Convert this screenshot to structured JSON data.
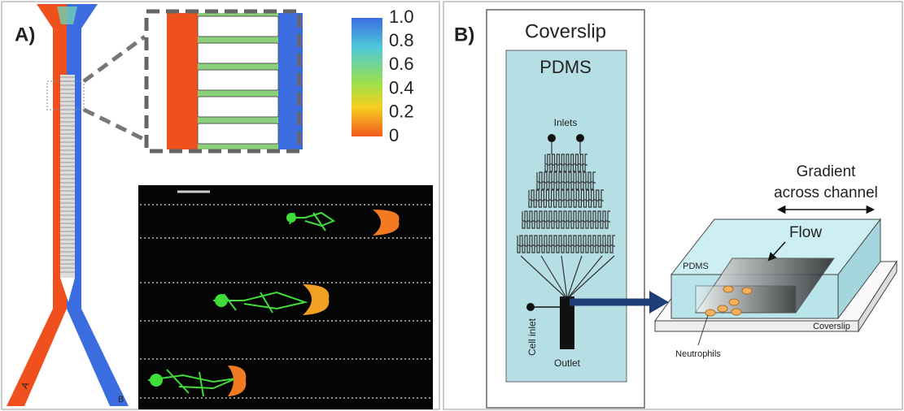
{
  "panel_a": {
    "label": "A)",
    "colorbar_ticks": [
      "1.0",
      "0.8",
      "0.6",
      "0.4",
      "0.2",
      "0"
    ],
    "channel_labels": [
      "A",
      "B"
    ]
  },
  "panel_b": {
    "label": "B)",
    "coverslip": "Coverslip",
    "pdms": "PDMS",
    "inlets": "Inlets",
    "cell_inlet": "Cell inlet",
    "outlet": "Outlet",
    "gradient_lines": [
      "Gradient",
      "across channel"
    ],
    "flow": "Flow",
    "pdms_3d": "PDMS",
    "coverslip_3d": "Coverslip",
    "neutrophils": "Neutrophils"
  }
}
